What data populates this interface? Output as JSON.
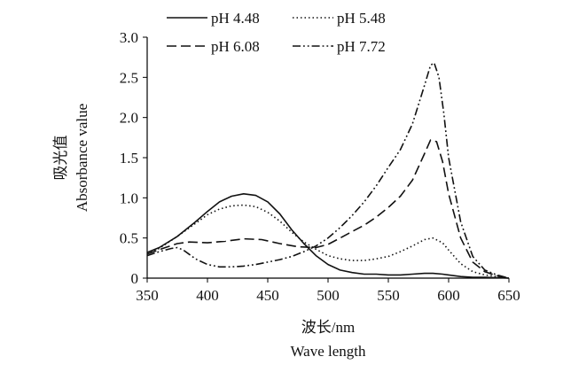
{
  "chart_data": {
    "type": "line",
    "title": "",
    "xlabel": [
      "波长/nm",
      "Wave length"
    ],
    "ylabel": [
      "吸光值",
      "Absorbance value"
    ],
    "xlim": [
      350,
      650
    ],
    "ylim": [
      0,
      3.0
    ],
    "xticks": [
      "350",
      "400",
      "450",
      "500",
      "550",
      "600",
      "650"
    ],
    "yticks": [
      "0",
      "0.5",
      "1.0",
      "1.5",
      "2.0",
      "2.5",
      "3.0"
    ],
    "grid": false,
    "legend_position": "top",
    "series": [
      {
        "name": "pH 4.48",
        "dash": "solid",
        "x": [
          350,
          360,
          375,
          390,
          400,
          410,
          420,
          430,
          440,
          450,
          460,
          470,
          480,
          490,
          500,
          510,
          520,
          530,
          540,
          550,
          560,
          570,
          580,
          587,
          595,
          600,
          610,
          620,
          630,
          640,
          650
        ],
        "y": [
          0.32,
          0.38,
          0.52,
          0.7,
          0.83,
          0.95,
          1.02,
          1.05,
          1.03,
          0.95,
          0.8,
          0.6,
          0.43,
          0.28,
          0.17,
          0.1,
          0.07,
          0.05,
          0.05,
          0.04,
          0.04,
          0.05,
          0.06,
          0.06,
          0.05,
          0.04,
          0.02,
          0.01,
          0.01,
          0.005,
          0.0
        ]
      },
      {
        "name": "pH 5.48",
        "dash": "dotted",
        "x": [
          350,
          360,
          375,
          390,
          400,
          410,
          420,
          430,
          440,
          450,
          460,
          470,
          480,
          490,
          500,
          510,
          520,
          530,
          540,
          550,
          560,
          570,
          580,
          587,
          595,
          600,
          610,
          620,
          630,
          640,
          650
        ],
        "y": [
          0.3,
          0.37,
          0.52,
          0.68,
          0.79,
          0.86,
          0.9,
          0.91,
          0.89,
          0.82,
          0.71,
          0.57,
          0.45,
          0.36,
          0.28,
          0.24,
          0.22,
          0.22,
          0.24,
          0.27,
          0.33,
          0.4,
          0.48,
          0.5,
          0.44,
          0.35,
          0.18,
          0.08,
          0.04,
          0.02,
          0.0
        ]
      },
      {
        "name": "pH 6.08",
        "dash": "dashed",
        "x": [
          350,
          365,
          375,
          385,
          400,
          415,
          430,
          445,
          460,
          475,
          490,
          500,
          510,
          520,
          530,
          540,
          550,
          560,
          570,
          580,
          585,
          590,
          595,
          600,
          610,
          620,
          630,
          640,
          650
        ],
        "y": [
          0.3,
          0.38,
          0.43,
          0.45,
          0.44,
          0.46,
          0.49,
          0.48,
          0.43,
          0.39,
          0.38,
          0.42,
          0.5,
          0.58,
          0.66,
          0.76,
          0.88,
          1.02,
          1.22,
          1.55,
          1.72,
          1.7,
          1.45,
          1.05,
          0.5,
          0.2,
          0.08,
          0.03,
          0.0
        ]
      },
      {
        "name": "pH 7.72",
        "dash": "dash-dot",
        "x": [
          350,
          360,
          370,
          375,
          380,
          390,
          400,
          410,
          420,
          430,
          440,
          450,
          460,
          470,
          480,
          490,
          500,
          510,
          520,
          530,
          540,
          550,
          560,
          570,
          580,
          585,
          588,
          592,
          596,
          600,
          610,
          620,
          630,
          640,
          650
        ],
        "y": [
          0.28,
          0.33,
          0.37,
          0.38,
          0.35,
          0.24,
          0.17,
          0.14,
          0.14,
          0.15,
          0.17,
          0.2,
          0.23,
          0.27,
          0.33,
          0.4,
          0.5,
          0.63,
          0.78,
          0.95,
          1.15,
          1.38,
          1.6,
          1.92,
          2.4,
          2.65,
          2.68,
          2.5,
          2.05,
          1.5,
          0.7,
          0.27,
          0.1,
          0.04,
          0.0
        ]
      }
    ]
  }
}
